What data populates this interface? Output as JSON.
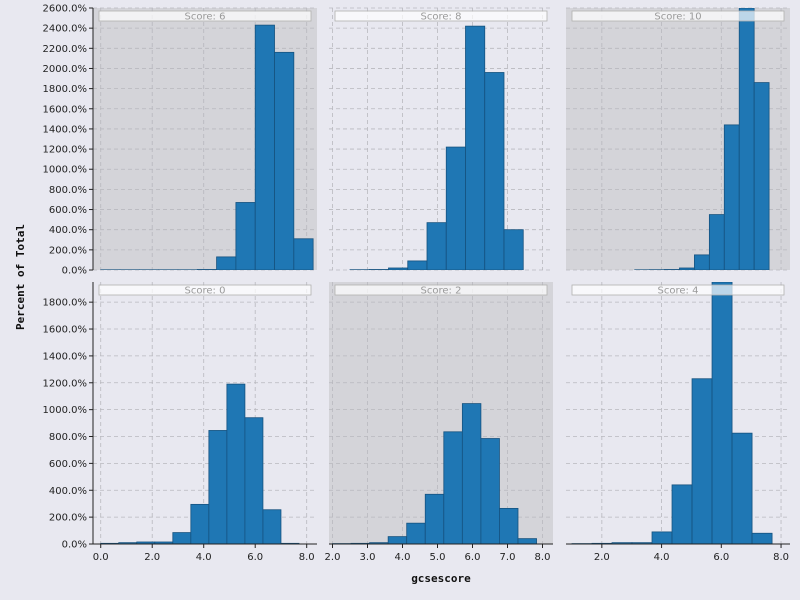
{
  "chart_data": {
    "type": "bar",
    "xlabel": "gcsescore",
    "ylabel": "Percent of Total",
    "grid": true,
    "bar_color": "#1f77b4",
    "rows": [
      {
        "ylim": [
          0,
          2600
        ],
        "yticks": [
          0,
          200,
          400,
          600,
          800,
          1000,
          1200,
          1400,
          1600,
          1800,
          2000,
          2200,
          2400,
          2600
        ],
        "ytick_labels": [
          "0.0%",
          "200.0%",
          "400.0%",
          "600.0%",
          "800.0%",
          "1000.0%",
          "1200.0%",
          "1400.0%",
          "1600.0%",
          "1800.0%",
          "2000.0%",
          "2200.0%",
          "2400.0%",
          "2600.0%"
        ]
      },
      {
        "ylim": [
          0,
          1950
        ],
        "yticks": [
          0,
          200,
          400,
          600,
          800,
          1000,
          1200,
          1400,
          1600,
          1800
        ],
        "ytick_labels": [
          "0.0%",
          "200.0%",
          "400.0%",
          "600.0%",
          "800.0%",
          "1000.0%",
          "1200.0%",
          "1400.0%",
          "1600.0%",
          "1800.0%"
        ]
      }
    ],
    "columns": [
      {
        "xlim": [
          -0.3,
          8.4
        ],
        "xticks": [
          0,
          2,
          4,
          6,
          8
        ],
        "xtick_labels": [
          "0.0",
          "2.0",
          "4.0",
          "6.0",
          "8.0"
        ]
      },
      {
        "xlim": [
          1.9,
          8.3
        ],
        "xticks": [
          2,
          3,
          4,
          5,
          6,
          7,
          8
        ],
        "xtick_labels": [
          "2.0",
          "3.0",
          "4.0",
          "5.0",
          "6.0",
          "7.0",
          "8.0"
        ]
      },
      {
        "xlim": [
          0.8,
          8.3
        ],
        "xticks": [
          2,
          4,
          6,
          8
        ],
        "xtick_labels": [
          "2.0",
          "4.0",
          "6.0",
          "8.0"
        ]
      }
    ],
    "panels": [
      {
        "strip": "Score: 6",
        "row": 0,
        "col": 0,
        "shaded": true,
        "bin_edges": [
          0.0,
          0.75,
          1.5,
          2.25,
          3.0,
          3.75,
          4.5,
          5.25,
          6.0,
          6.75,
          7.5,
          8.25
        ],
        "values": [
          2,
          2,
          2,
          2,
          2,
          5,
          130,
          670,
          2430,
          2160,
          310
        ]
      },
      {
        "strip": "Score: 8",
        "row": 0,
        "col": 1,
        "shaded": false,
        "bin_edges": [
          2.5,
          3.05,
          3.6,
          4.15,
          4.7,
          5.25,
          5.8,
          6.35,
          6.9,
          7.45,
          8.0
        ],
        "values": [
          3,
          5,
          20,
          90,
          470,
          1220,
          2420,
          1960,
          400,
          0
        ]
      },
      {
        "strip": "Score: 10",
        "row": 0,
        "col": 2,
        "shaded": true,
        "bin_edges": [
          3.1,
          3.6,
          4.1,
          4.6,
          5.1,
          5.6,
          6.1,
          6.6,
          7.1,
          7.6,
          8.1
        ],
        "values": [
          2,
          3,
          5,
          20,
          150,
          550,
          1440,
          2600,
          1860,
          0
        ]
      },
      {
        "strip": "Score: 0",
        "row": 1,
        "col": 0,
        "shaded": false,
        "bin_edges": [
          0.0,
          0.7,
          1.4,
          2.1,
          2.8,
          3.5,
          4.2,
          4.9,
          5.6,
          6.3,
          7.0,
          7.7
        ],
        "values": [
          5,
          10,
          15,
          15,
          85,
          295,
          845,
          1190,
          940,
          255,
          5
        ]
      },
      {
        "strip": "Score: 2",
        "row": 1,
        "col": 1,
        "shaded": true,
        "bin_edges": [
          2.0,
          2.53,
          3.06,
          3.59,
          4.12,
          4.65,
          5.18,
          5.71,
          6.24,
          6.77,
          7.3,
          7.83
        ],
        "values": [
          3,
          5,
          10,
          55,
          155,
          370,
          835,
          1045,
          785,
          265,
          40
        ]
      },
      {
        "strip": "Score: 4",
        "row": 1,
        "col": 2,
        "shaded": false,
        "bin_edges": [
          1.0,
          1.67,
          2.34,
          3.01,
          3.68,
          4.35,
          5.02,
          5.69,
          6.36,
          7.03,
          7.7
        ],
        "values": [
          3,
          5,
          10,
          10,
          90,
          440,
          1230,
          1950,
          825,
          80
        ]
      }
    ]
  }
}
